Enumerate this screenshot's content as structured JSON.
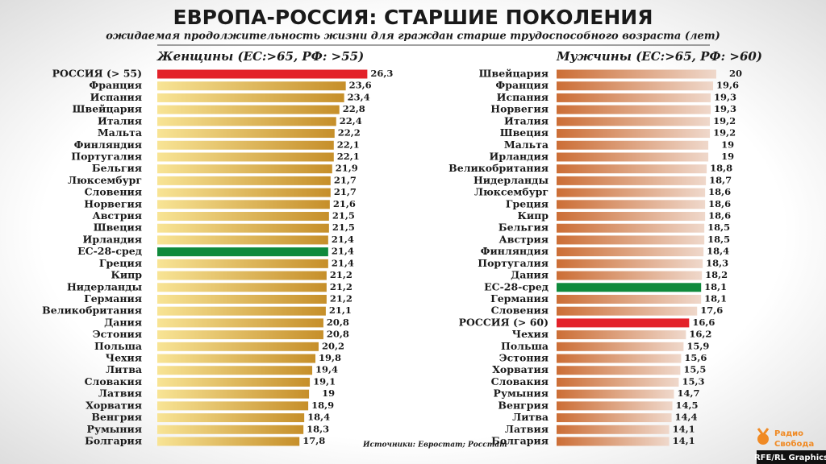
{
  "header": {
    "title": "ЕВРОПА-РОССИЯ: СТАРШИЕ ПОКОЛЕНИЯ",
    "subtitle": "ожидаемая продолжительность жизни для граждан старше трудоспособного возраста (лет)"
  },
  "source": "Источники: Евростат; Росстат",
  "logo": {
    "line1": "Радио",
    "line2": "Свобода"
  },
  "credit": "RFE/RL Graphics",
  "chart_data": [
    {
      "type": "bar",
      "orientation": "horizontal",
      "title": "Женщины (ЕС:>65, РФ: >55)",
      "categories": [
        "РОССИЯ (> 55)",
        "Франция",
        "Испания",
        "Швейцария",
        "Италия",
        "Мальта",
        "Финляндия",
        "Португалия",
        "Бельгия",
        "Люксембург",
        "Словения",
        "Норвегия",
        "Австрия",
        "Швеция",
        "Ирландия",
        "ЕС-28-сред",
        "Греция",
        "Кипр",
        "Нидерланды",
        "Германия",
        "Великобритания",
        "Дания",
        "Эстония",
        "Польша",
        "Чехия",
        "Литва",
        "Словакия",
        "Латвия",
        "Хорватия",
        "Венгрия",
        "Румыния",
        "Болгария"
      ],
      "series": [
        {
          "color": "#dcae48",
          "gradient": [
            "#f8e495",
            "#c68f2a"
          ],
          "values": [
            26.3,
            23.6,
            23.4,
            22.8,
            22.4,
            22.2,
            22.1,
            22.1,
            21.9,
            21.7,
            21.7,
            21.6,
            21.5,
            21.5,
            21.4,
            21.4,
            21.4,
            21.2,
            21.2,
            21.2,
            21.1,
            20.8,
            20.8,
            20.2,
            19.8,
            19.4,
            19.1,
            19,
            18.9,
            18.4,
            18.3,
            17.8
          ],
          "value_labels": [
            "26,3",
            "23,6",
            "23,4",
            "22,8",
            "22,4",
            "22,2",
            "22,1",
            "22,1",
            "21,9",
            "21,7",
            "21,7",
            "21,6",
            "21,5",
            "21,5",
            "21,4",
            "21,4",
            "21,4",
            "21,2",
            "21,2",
            "21,2",
            "21,1",
            "20,8",
            "20,8",
            "20,2",
            "19,8",
            "19,4",
            "19,1",
            "19",
            "18,9",
            "18,4",
            "18,3",
            "17,8"
          ],
          "colors": [
            "#e3222a",
            "#dcae48",
            "#dcae48",
            "#dcae48",
            "#dcae48",
            "#dcae48",
            "#dcae48",
            "#dcae48",
            "#dcae48",
            "#dcae48",
            "#dcae48",
            "#dcae48",
            "#dcae48",
            "#dcae48",
            "#dcae48",
            "#0f8a3c",
            "#dcae48",
            "#dcae48",
            "#dcae48",
            "#dcae48",
            "#dcae48",
            "#dcae48",
            "#dcae48",
            "#dcae48",
            "#dcae48",
            "#dcae48",
            "#dcae48",
            "#dcae48",
            "#dcae48",
            "#dcae48",
            "#dcae48",
            "#dcae48"
          ]
        }
      ]
    },
    {
      "type": "bar",
      "orientation": "horizontal",
      "title": "Мужчины (ЕС:>65, РФ: >60)",
      "categories": [
        "Швейцария",
        "Франция",
        "Испания",
        "Норвегия",
        "Италия",
        "Швеция",
        "Мальта",
        "Ирландия",
        "Великобритания",
        "Нидерланды",
        "Люксембург",
        "Греция",
        "Кипр",
        "Бельгия",
        "Австрия",
        "Финляндия",
        "Португалия",
        "Дания",
        "ЕС-28-сред",
        "Германия",
        "Словения",
        "РОССИЯ (> 60)",
        "Чехия",
        "Польша",
        "Эстония",
        "Хорватия",
        "Словакия",
        "Румыния",
        "Венгрия",
        "Литва",
        "Латвия",
        "Болгария"
      ],
      "series": [
        {
          "color": "#dc9e7c",
          "gradient": [
            "#cc6e36",
            "#efd8cb"
          ],
          "values": [
            20,
            19.6,
            19.3,
            19.3,
            19.2,
            19.2,
            19,
            19,
            18.8,
            18.7,
            18.6,
            18.6,
            18.6,
            18.5,
            18.5,
            18.4,
            18.3,
            18.2,
            18.1,
            18.1,
            17.6,
            16.6,
            16.2,
            15.9,
            15.6,
            15.5,
            15.3,
            14.7,
            14.5,
            14.4,
            14.1,
            14.1
          ],
          "value_labels": [
            "20",
            "19,6",
            "19,3",
            "19,3",
            "19,2",
            "19,2",
            "19",
            "19",
            "18,8",
            "18,7",
            "18,6",
            "18,6",
            "18,6",
            "18,5",
            "18,5",
            "18,4",
            "18,3",
            "18,2",
            "18,1",
            "18,1",
            "17,6",
            "16,6",
            "16,2",
            "15,9",
            "15,6",
            "15,5",
            "15,3",
            "14,7",
            "14,5",
            "14,4",
            "14,1",
            "14,1"
          ],
          "colors": [
            "#dc9e7c",
            "#dc9e7c",
            "#dc9e7c",
            "#dc9e7c",
            "#dc9e7c",
            "#dc9e7c",
            "#dc9e7c",
            "#dc9e7c",
            "#dc9e7c",
            "#dc9e7c",
            "#dc9e7c",
            "#dc9e7c",
            "#dc9e7c",
            "#dc9e7c",
            "#dc9e7c",
            "#dc9e7c",
            "#dc9e7c",
            "#dc9e7c",
            "#0f8a3c",
            "#dc9e7c",
            "#dc9e7c",
            "#e3222a",
            "#dc9e7c",
            "#dc9e7c",
            "#dc9e7c",
            "#dc9e7c",
            "#dc9e7c",
            "#dc9e7c",
            "#dc9e7c",
            "#dc9e7c",
            "#dc9e7c",
            "#dc9e7c"
          ]
        }
      ]
    }
  ]
}
